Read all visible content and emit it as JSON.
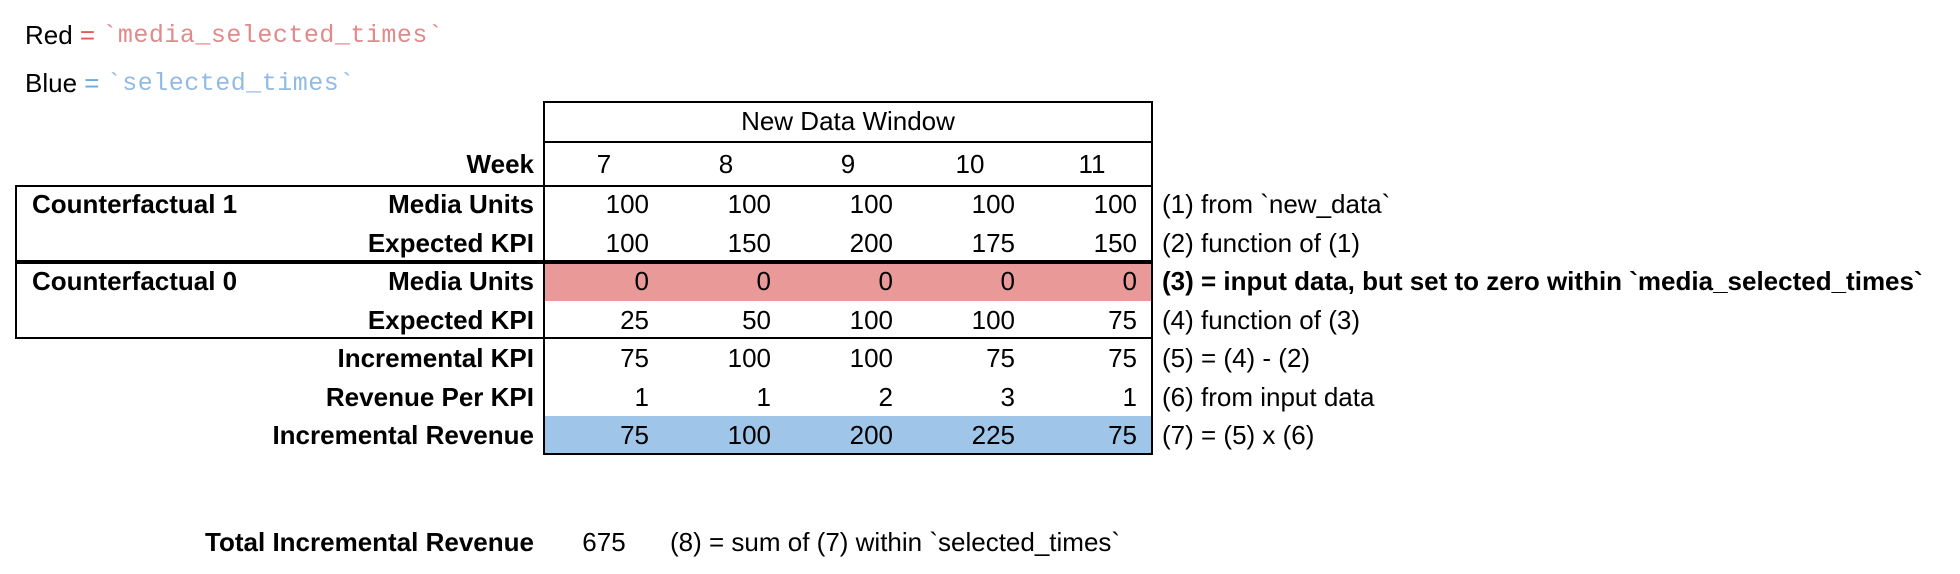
{
  "colors": {
    "red_fill": "#ea9999",
    "blue_fill": "#9fc5e8",
    "legend_red_text": "#d95f5f",
    "legend_red_code_text": "#e08a8a",
    "legend_blue_text": "#6fa8dc",
    "legend_blue_code_text": "#92bbe4",
    "border": "#000000"
  },
  "legend": {
    "red_label": "Red",
    "red_eq": " = ",
    "red_code": "`media_selected_times`",
    "blue_label": "Blue",
    "blue_eq": " = ",
    "blue_code": "`selected_times`"
  },
  "table": {
    "window_header": "New Data Window",
    "week_label": "Week",
    "weeks": [
      "7",
      "8",
      "9",
      "10",
      "11"
    ],
    "groups": [
      {
        "label": "Counterfactual 1"
      },
      {
        "label": "Counterfactual 0"
      }
    ],
    "rows": [
      {
        "label": "Media Units",
        "values": [
          "100",
          "100",
          "100",
          "100",
          "100"
        ],
        "note": "(1) from `new_data`"
      },
      {
        "label": "Expected KPI",
        "values": [
          "100",
          "150",
          "200",
          "175",
          "150"
        ],
        "note": "(2) function of (1)"
      },
      {
        "label": "Media Units",
        "values": [
          "0",
          "0",
          "0",
          "0",
          "0"
        ],
        "note": "(3) = input data, but set to zero within `media_selected_times`",
        "highlight": "red",
        "note_bold": true
      },
      {
        "label": "Expected KPI",
        "values": [
          "25",
          "50",
          "100",
          "100",
          "75"
        ],
        "note": "(4) function of (3)"
      },
      {
        "label": "Incremental KPI",
        "values": [
          "75",
          "100",
          "100",
          "75",
          "75"
        ],
        "note": "(5) = (4) - (2)"
      },
      {
        "label": "Revenue Per KPI",
        "values": [
          "1",
          "1",
          "2",
          "3",
          "1"
        ],
        "note": "(6) from input data"
      },
      {
        "label": "Incremental Revenue",
        "values": [
          "75",
          "100",
          "200",
          "225",
          "75"
        ],
        "note": "(7) = (5) x (6)",
        "highlight": "blue"
      }
    ],
    "total": {
      "label": "Total Incremental Revenue",
      "value": "675",
      "note": "(8) = sum of (7) within `selected_times`"
    }
  }
}
